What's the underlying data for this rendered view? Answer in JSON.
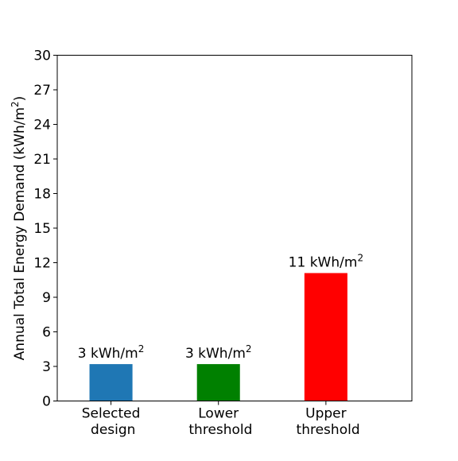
{
  "chart_data": {
    "type": "bar",
    "categories": [
      [
        "Selected",
        " design"
      ],
      [
        "Lower",
        " threshold"
      ],
      [
        "Upper",
        " threshold"
      ]
    ],
    "values": [
      3.2,
      3.2,
      11.1
    ],
    "data_labels": [
      {
        "text": "3 kWh/m",
        "sup": "2"
      },
      {
        "text": "3 kWh/m",
        "sup": "2"
      },
      {
        "text": "11 kWh/m",
        "sup": "2"
      }
    ],
    "bar_colors": [
      "#1f77b4",
      "#008000",
      "#ff0000"
    ],
    "ylabel": {
      "text": "Annual Total Energy Demand (kWh/m",
      "sup": "2",
      "tail": ")"
    },
    "xlabel": "",
    "title": "",
    "ylim": [
      0,
      30
    ],
    "yticks": [
      0,
      3,
      6,
      9,
      12,
      15,
      18,
      21,
      24,
      27,
      30
    ],
    "x_range": [
      -0.5,
      2.8
    ],
    "bar_width": 0.4,
    "grid": false,
    "legend": "none"
  }
}
